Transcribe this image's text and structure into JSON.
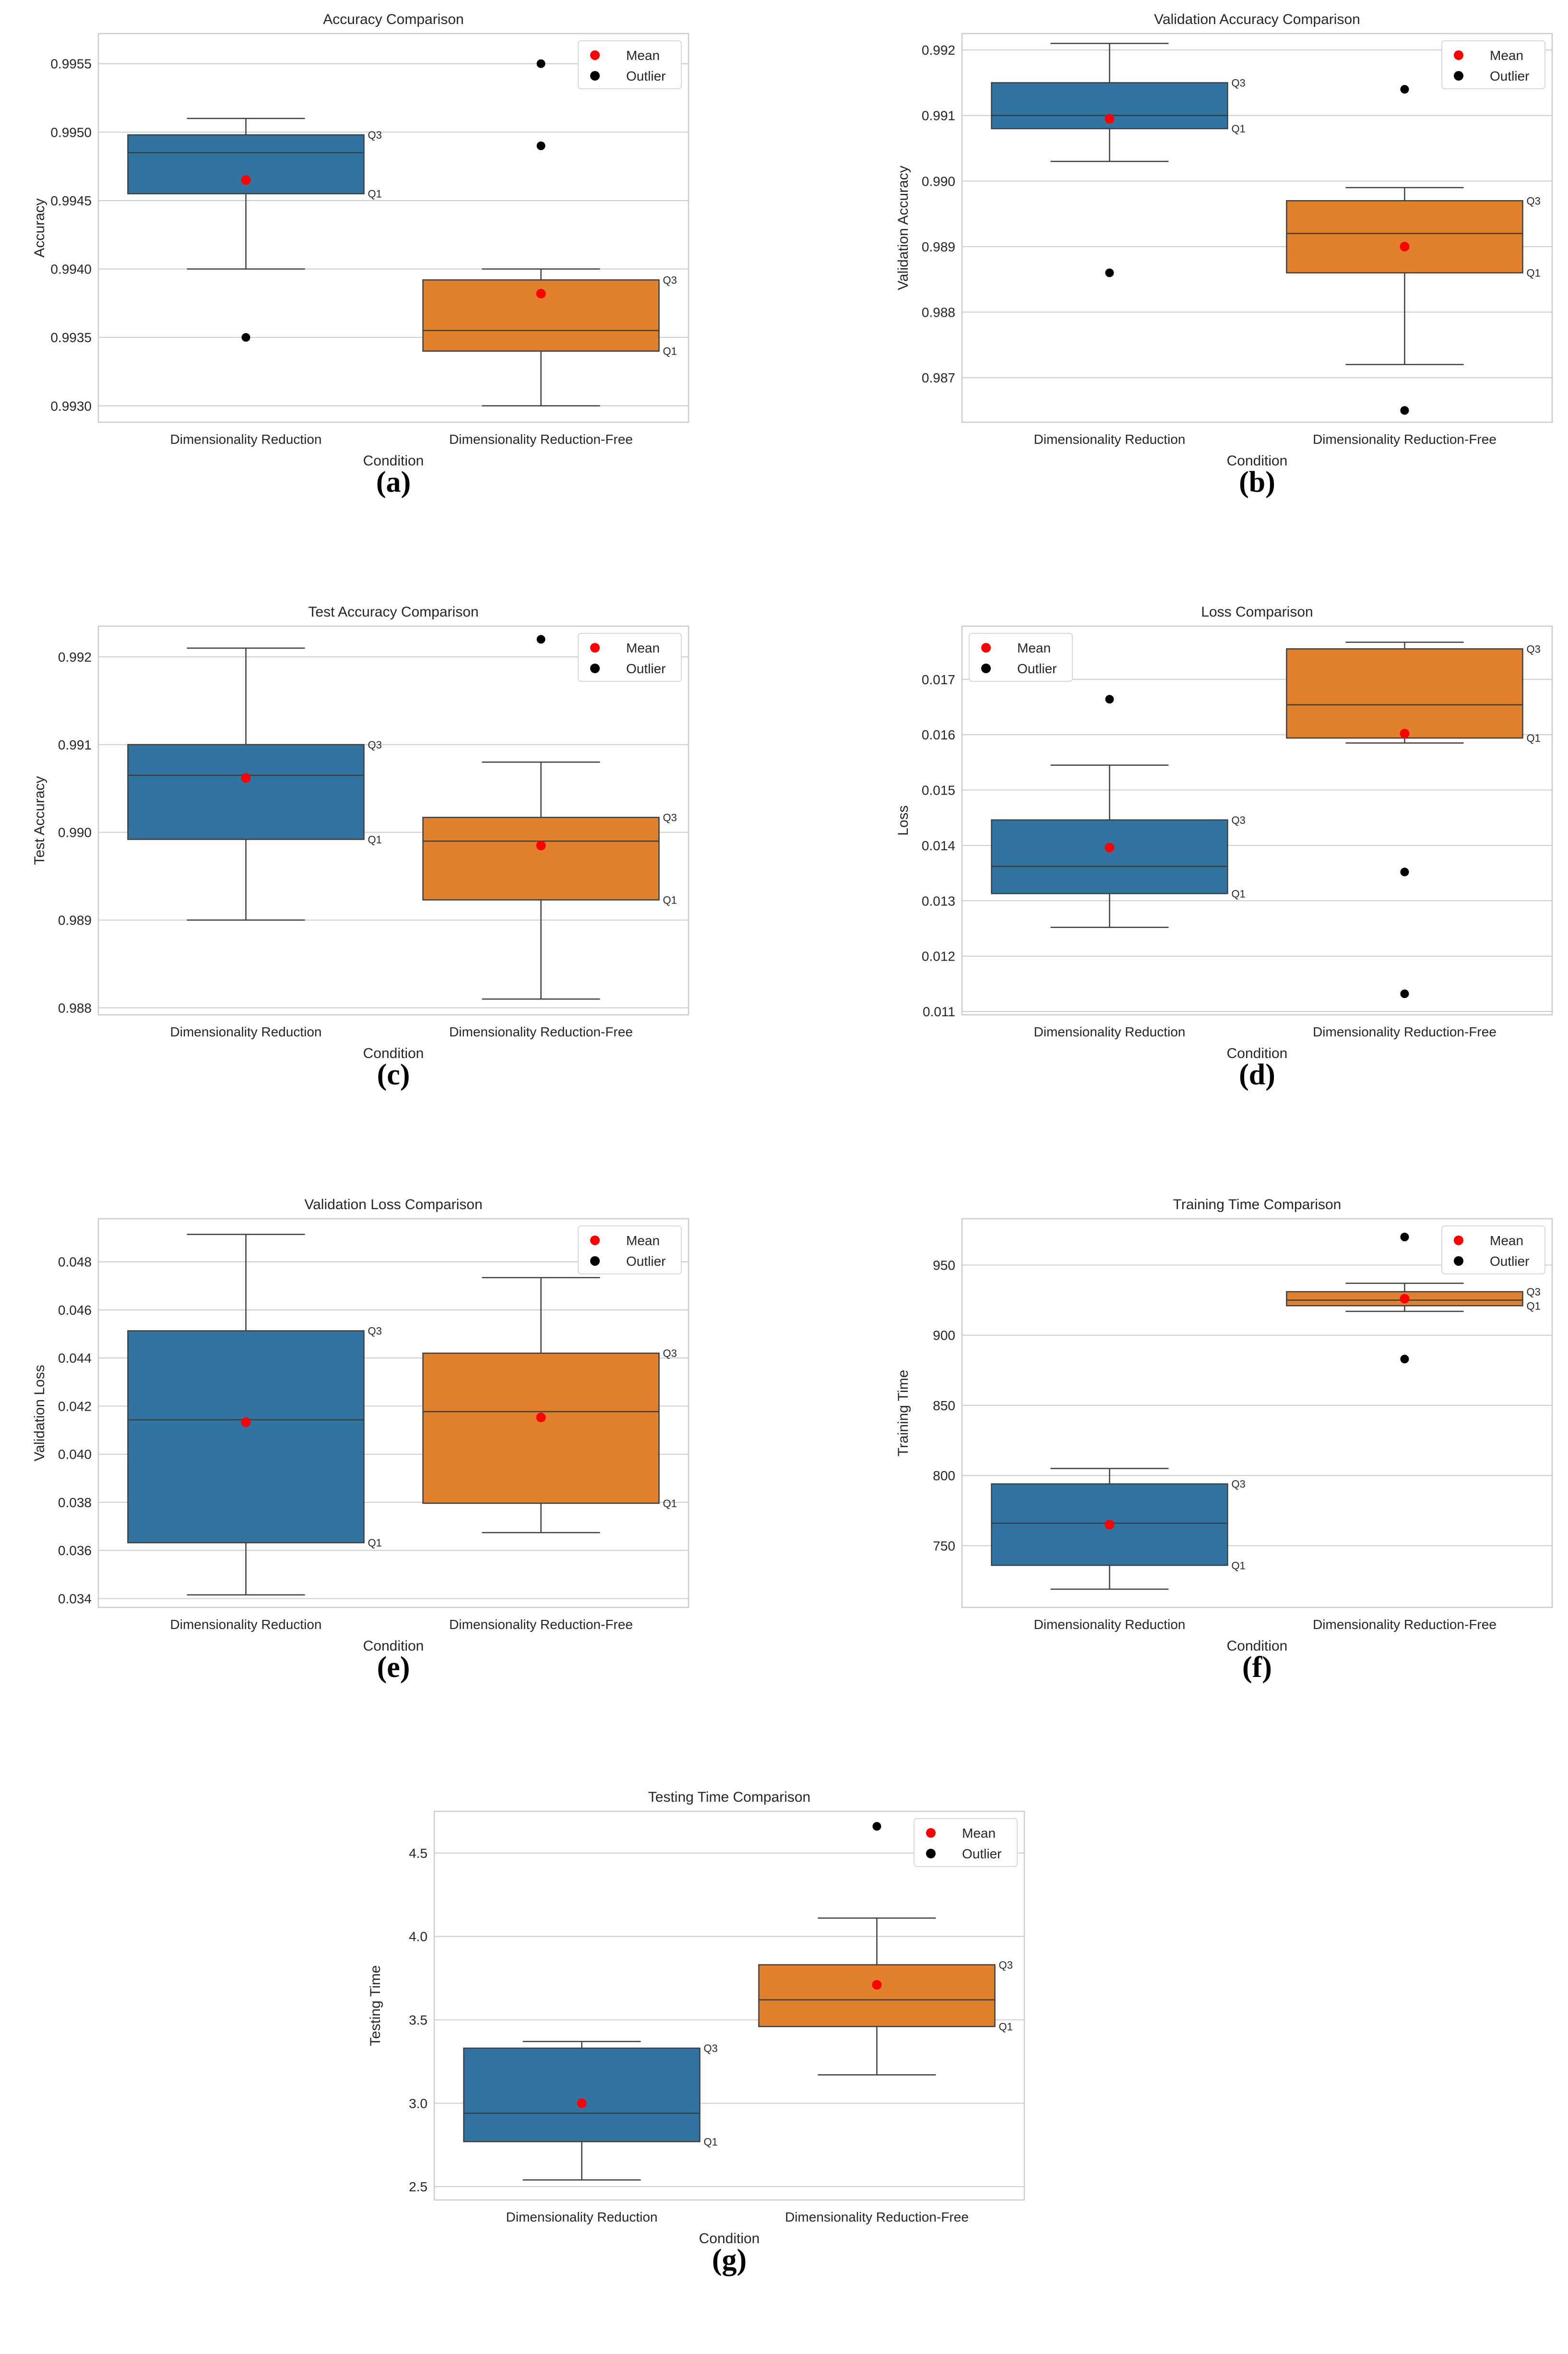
{
  "figure": {
    "legend": {
      "mean_label": "Mean",
      "outlier_label": "Outlier"
    },
    "colors": {
      "group1": "#3274a1",
      "group2": "#e1812c",
      "mean": "#ff0000",
      "outlier": "#000000",
      "grid": "#cccccc",
      "line": "#3d3d3d"
    },
    "quartile_labels": {
      "q1": "Q1",
      "q3": "Q3"
    }
  },
  "chart_data": [
    {
      "id": "a",
      "type": "box",
      "panel_label": "(a)",
      "title": "Accuracy Comparison",
      "xlabel": "Condition",
      "ylabel": "Accuracy",
      "categories": [
        "Dimensionality Reduction",
        "Dimensionality Reduction-Free"
      ],
      "ylim": [
        0.99288,
        0.99572
      ],
      "yticks": [
        "0.9930",
        "0.9935",
        "0.9940",
        "0.9945",
        "0.9950",
        "0.9955"
      ],
      "legend_position": "top-right",
      "boxes": [
        {
          "whisker_low": 0.994,
          "q1": 0.99455,
          "median": 0.99485,
          "q3": 0.99498,
          "whisker_high": 0.9951,
          "mean": 0.99465,
          "outliers": [
            0.9935
          ]
        },
        {
          "whisker_low": 0.993,
          "q1": 0.9934,
          "median": 0.99355,
          "q3": 0.99392,
          "whisker_high": 0.994,
          "mean": 0.99382,
          "outliers": [
            0.9955,
            0.9949
          ]
        }
      ]
    },
    {
      "id": "b",
      "type": "box",
      "panel_label": "(b)",
      "title": "Validation Accuracy Comparison",
      "xlabel": "Condition",
      "ylabel": "Validation Accuracy",
      "categories": [
        "Dimensionality Reduction",
        "Dimensionality Reduction-Free"
      ],
      "ylim": [
        0.98632,
        0.99225
      ],
      "yticks": [
        "0.987",
        "0.988",
        "0.989",
        "0.990",
        "0.991",
        "0.992"
      ],
      "legend_position": "top-right",
      "boxes": [
        {
          "whisker_low": 0.9903,
          "q1": 0.9908,
          "median": 0.991,
          "q3": 0.9915,
          "whisker_high": 0.9921,
          "mean": 0.99095,
          "outliers": [
            0.9886
          ]
        },
        {
          "whisker_low": 0.9872,
          "q1": 0.9886,
          "median": 0.9892,
          "q3": 0.9897,
          "whisker_high": 0.9899,
          "mean": 0.989,
          "outliers": [
            0.9914,
            0.9865
          ]
        }
      ]
    },
    {
      "id": "c",
      "type": "box",
      "panel_label": "(c)",
      "title": "Test Accuracy Comparison",
      "xlabel": "Condition",
      "ylabel": "Test Accuracy",
      "categories": [
        "Dimensionality Reduction",
        "Dimensionality Reduction-Free"
      ],
      "ylim": [
        0.98792,
        0.99235
      ],
      "yticks": [
        "0.988",
        "0.989",
        "0.990",
        "0.991",
        "0.992"
      ],
      "legend_position": "top-right",
      "boxes": [
        {
          "whisker_low": 0.989,
          "q1": 0.98992,
          "median": 0.99065,
          "q3": 0.991,
          "whisker_high": 0.9921,
          "mean": 0.99062,
          "outliers": []
        },
        {
          "whisker_low": 0.9881,
          "q1": 0.98923,
          "median": 0.9899,
          "q3": 0.99017,
          "whisker_high": 0.9908,
          "mean": 0.98985,
          "outliers": [
            0.9922
          ]
        }
      ]
    },
    {
      "id": "d",
      "type": "box",
      "panel_label": "(d)",
      "title": "Loss Comparison",
      "xlabel": "Condition",
      "ylabel": "Loss",
      "categories": [
        "Dimensionality Reduction",
        "Dimensionality Reduction-Free"
      ],
      "ylim": [
        0.01094,
        0.01796
      ],
      "yticks": [
        "0.011",
        "0.012",
        "0.013",
        "0.014",
        "0.015",
        "0.016",
        "0.017"
      ],
      "legend_position": "top-left",
      "boxes": [
        {
          "whisker_low": 0.01252,
          "q1": 0.01313,
          "median": 0.01362,
          "q3": 0.01446,
          "whisker_high": 0.01545,
          "mean": 0.01396,
          "outliers": [
            0.01664
          ]
        },
        {
          "whisker_low": 0.01585,
          "q1": 0.01594,
          "median": 0.01654,
          "q3": 0.01755,
          "whisker_high": 0.01767,
          "mean": 0.01602,
          "outliers": [
            0.01352,
            0.01132
          ]
        }
      ]
    },
    {
      "id": "e",
      "type": "box",
      "panel_label": "(e)",
      "title": "Validation Loss Comparison",
      "xlabel": "Condition",
      "ylabel": "Validation Loss",
      "categories": [
        "Dimensionality Reduction",
        "Dimensionality Reduction-Free"
      ],
      "ylim": [
        0.03363,
        0.04979
      ],
      "yticks": [
        "0.034",
        "0.036",
        "0.038",
        "0.040",
        "0.042",
        "0.044",
        "0.046",
        "0.048"
      ],
      "legend_position": "top-right",
      "boxes": [
        {
          "whisker_low": 0.03415,
          "q1": 0.03632,
          "median": 0.04143,
          "q3": 0.04513,
          "whisker_high": 0.04914,
          "mean": 0.04133,
          "outliers": []
        },
        {
          "whisker_low": 0.03674,
          "q1": 0.03796,
          "median": 0.04177,
          "q3": 0.0442,
          "whisker_high": 0.04734,
          "mean": 0.04153,
          "outliers": []
        }
      ]
    },
    {
      "id": "f",
      "type": "box",
      "panel_label": "(f)",
      "title": "Training Time Comparison",
      "xlabel": "Condition",
      "ylabel": "Training Time",
      "categories": [
        "Dimensionality Reduction",
        "Dimensionality Reduction-Free"
      ],
      "ylim": [
        706,
        983
      ],
      "yticks": [
        "750",
        "800",
        "850",
        "900",
        "950"
      ],
      "legend_position": "top-right",
      "boxes": [
        {
          "whisker_low": 719,
          "q1": 736,
          "median": 766,
          "q3": 794,
          "whisker_high": 805,
          "mean": 765,
          "outliers": []
        },
        {
          "whisker_low": 917,
          "q1": 921,
          "median": 925,
          "q3": 931,
          "whisker_high": 937,
          "mean": 926,
          "outliers": [
            970,
            883
          ]
        }
      ]
    },
    {
      "id": "g",
      "type": "box",
      "panel_label": "(g)",
      "title": "Testing Time Comparison",
      "xlabel": "Condition",
      "ylabel": "Testing Time",
      "categories": [
        "Dimensionality Reduction",
        "Dimensionality Reduction-Free"
      ],
      "ylim": [
        2.42,
        4.75
      ],
      "yticks": [
        "2.5",
        "3.0",
        "3.5",
        "4.0",
        "4.5"
      ],
      "legend_position": "top-right",
      "boxes": [
        {
          "whisker_low": 2.54,
          "q1": 2.77,
          "median": 2.94,
          "q3": 3.33,
          "whisker_high": 3.37,
          "mean": 3.0,
          "outliers": []
        },
        {
          "whisker_low": 3.17,
          "q1": 3.46,
          "median": 3.62,
          "q3": 3.83,
          "whisker_high": 4.11,
          "mean": 3.71,
          "outliers": [
            4.66
          ]
        }
      ]
    }
  ]
}
